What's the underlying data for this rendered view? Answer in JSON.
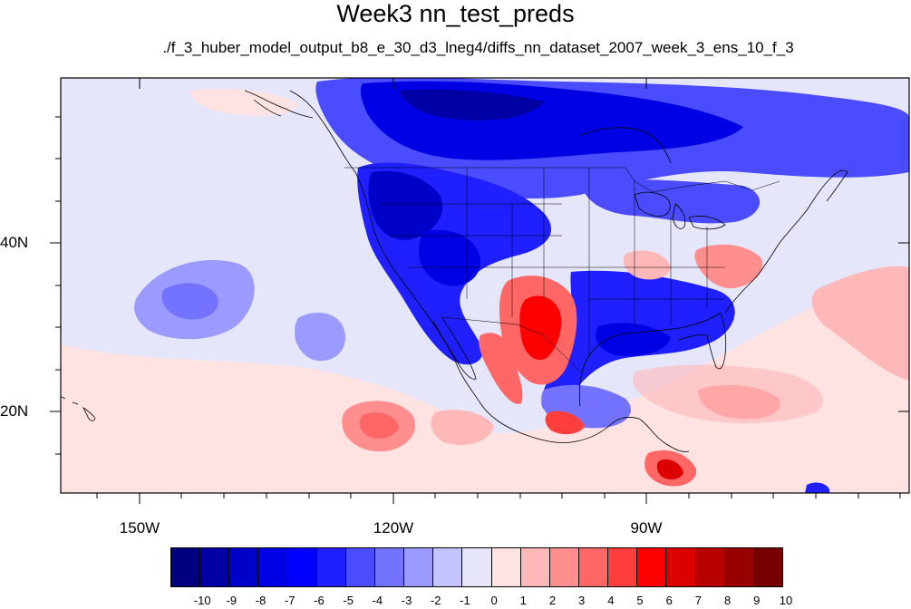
{
  "title": "Week3 nn_test_preds",
  "subtitle": "./f_3_huber_model_output_b8_e_30_d3_lneg4/diffs_nn_dataset_2007_week_3_ens_10_f_3",
  "axes": {
    "lon_labels": [
      "150W",
      "120W",
      "90W"
    ],
    "lat_labels": [
      "40N",
      "20N"
    ],
    "lon_range": [
      -159,
      -61
    ],
    "lat_range": [
      10,
      59
    ]
  },
  "colorbar": {
    "labels": [
      "-10",
      "-9",
      "-8",
      "-7",
      "-6",
      "-5",
      "-4",
      "-3",
      "-2",
      "-1",
      "0",
      "1",
      "2",
      "3",
      "4",
      "5",
      "6",
      "7",
      "8",
      "9",
      "10"
    ],
    "colors": [
      "#00007f",
      "#0000a5",
      "#0000c8",
      "#0000e5",
      "#0000ff",
      "#1f1fff",
      "#4b4bff",
      "#7373ff",
      "#9b9bff",
      "#c3c3ff",
      "#e6e6fa",
      "#ffe2e2",
      "#ffb8b8",
      "#ff8f8f",
      "#ff6666",
      "#ff3d3d",
      "#ff0000",
      "#dc0000",
      "#b90000",
      "#960000",
      "#760000"
    ]
  },
  "chart_data": {
    "type": "heatmap",
    "title": "Week3 nn_test_preds",
    "subtitle": "./f_3_huber_model_output_b8_e_30_d3_lneg4/diffs_nn_dataset_2007_week_3_ens_10_f_3",
    "xlabel": "",
    "ylabel": "",
    "xlim": [
      -159,
      -61
    ],
    "ylim": [
      10,
      59
    ],
    "x_ticks": [
      "150W",
      "120W",
      "90W"
    ],
    "y_ticks": [
      "40N",
      "20N"
    ],
    "value_range": [
      -10,
      10
    ],
    "regions": [
      {
        "name": "pacific-background",
        "value": -1
      },
      {
        "name": "northern-canada-blue",
        "value": -7
      },
      {
        "name": "western-us-blue",
        "value": -6
      },
      {
        "name": "texas-gulf-blue",
        "value": -5
      },
      {
        "name": "mexico-plateau-red",
        "value": 6
      },
      {
        "name": "mid-atlantic-red",
        "value": 3
      },
      {
        "name": "east-pacific-red-20n",
        "value": 3
      },
      {
        "name": "central-america-red",
        "value": 6
      },
      {
        "name": "caribbean-red",
        "value": 4
      },
      {
        "name": "east-pacific-blue-33n",
        "value": -3
      },
      {
        "name": "atlantic-red",
        "value": 2
      }
    ]
  }
}
